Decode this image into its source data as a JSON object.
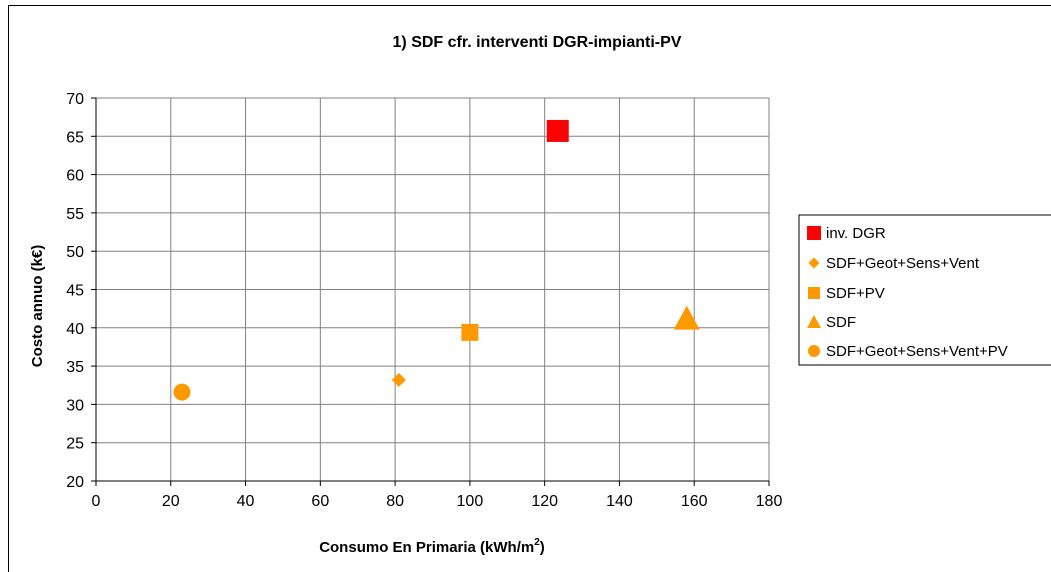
{
  "chart_data": {
    "type": "scatter",
    "title": "1) SDF cfr. interventi DGR-impianti-PV",
    "xlabel": "Consumo En Primaria (kWh/m",
    "xlabel_sup": "2",
    "xlabel_end": ")",
    "ylabel": "Costo annuo (k€)",
    "xlim": [
      0,
      180
    ],
    "ylim": [
      20,
      70
    ],
    "xticks": [
      "0",
      "20",
      "40",
      "60",
      "80",
      "100",
      "120",
      "140",
      "160",
      "180"
    ],
    "yticks": [
      "20",
      "25",
      "30",
      "35",
      "40",
      "45",
      "50",
      "55",
      "60",
      "65",
      "70"
    ],
    "grid": true,
    "legend_position": "right",
    "series": [
      {
        "name": "inv. DGR",
        "marker": "square",
        "color": "#ff0000",
        "x": 123.5,
        "y": 65.7
      },
      {
        "name": "SDF+Geot+Sens+Vent",
        "marker": "diamond",
        "color": "#ff9900",
        "x": 81,
        "y": 33.2
      },
      {
        "name": "SDF+PV",
        "marker": "square",
        "color": "#ff9900",
        "x": 100,
        "y": 39.4
      },
      {
        "name": "SDF",
        "marker": "triangle",
        "color": "#ff9900",
        "x": 158,
        "y": 41.2
      },
      {
        "name": "SDF+Geot+Sens+Vent+PV",
        "marker": "circle",
        "color": "#ff9900",
        "x": 23,
        "y": 31.6
      }
    ]
  }
}
